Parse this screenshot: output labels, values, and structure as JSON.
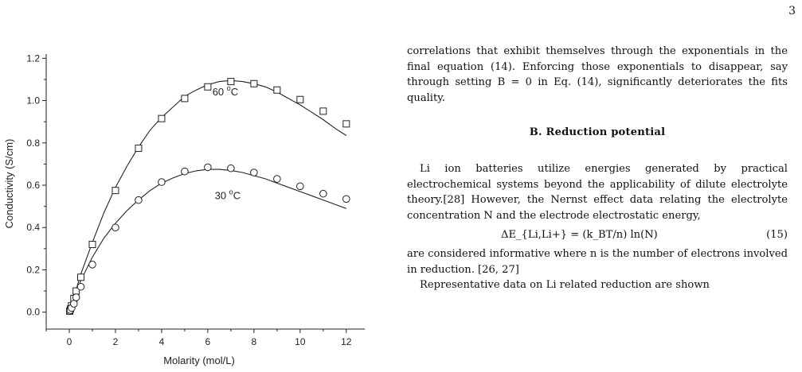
{
  "page": {
    "number": "3"
  },
  "figure": {
    "chart_data": {
      "type": "scatter",
      "xlabel": "Molarity (mol/L)",
      "ylabel": "Conductivity (S/cm)",
      "xlim": [
        -1,
        12.8
      ],
      "ylim": [
        -0.08,
        1.22
      ],
      "xticks": [
        0,
        2,
        4,
        6,
        8,
        10,
        12
      ],
      "yticks": [
        0.0,
        0.2,
        0.4,
        0.6,
        0.8,
        1.0,
        1.2
      ],
      "x_tick_labels": [
        "0",
        "2",
        "4",
        "6",
        "8",
        "10",
        "12"
      ],
      "y_tick_labels": [
        "0.0",
        "0.2",
        "0.4",
        "0.6",
        "0.8",
        "1.0",
        "1.2"
      ],
      "series": [
        {
          "name": "60 °C",
          "label_main": "60 ",
          "label_sup": "o",
          "label_unit": "C",
          "label_at": [
            6.2,
            1.025
          ],
          "marker": "square",
          "x": [
            0.02,
            0.05,
            0.1,
            0.2,
            0.3,
            0.5,
            1,
            2,
            3,
            4,
            5,
            6,
            7,
            8,
            9,
            10,
            11,
            12
          ],
          "y": [
            0.005,
            0.015,
            0.03,
            0.065,
            0.1,
            0.165,
            0.32,
            0.575,
            0.775,
            0.915,
            1.01,
            1.065,
            1.09,
            1.08,
            1.05,
            1.005,
            0.95,
            0.89
          ],
          "fit_x": [
            0,
            0.5,
            1,
            1.5,
            2,
            2.5,
            3,
            3.5,
            4,
            4.5,
            5,
            5.5,
            6,
            6.5,
            7,
            7.5,
            8,
            8.5,
            9,
            9.5,
            10,
            10.5,
            11,
            11.5,
            12
          ],
          "fit_y": [
            0.0,
            0.18,
            0.33,
            0.47,
            0.59,
            0.69,
            0.78,
            0.86,
            0.92,
            0.97,
            1.02,
            1.05,
            1.075,
            1.09,
            1.095,
            1.09,
            1.08,
            1.065,
            1.04,
            1.01,
            0.98,
            0.945,
            0.91,
            0.87,
            0.835
          ]
        },
        {
          "name": "30 °C",
          "label_main": "30 ",
          "label_sup": "o",
          "label_unit": "C",
          "label_at": [
            6.3,
            0.535
          ],
          "marker": "circle",
          "x": [
            0.02,
            0.05,
            0.1,
            0.2,
            0.3,
            0.5,
            1,
            2,
            3,
            4,
            5,
            6,
            7,
            8,
            9,
            10,
            11,
            12
          ],
          "y": [
            0.005,
            0.01,
            0.02,
            0.04,
            0.07,
            0.12,
            0.225,
            0.4,
            0.53,
            0.615,
            0.665,
            0.685,
            0.68,
            0.66,
            0.63,
            0.595,
            0.56,
            0.535
          ],
          "fit_x": [
            0,
            0.5,
            1,
            1.5,
            2,
            2.5,
            3,
            3.5,
            4,
            4.5,
            5,
            5.5,
            6,
            6.5,
            7,
            7.5,
            8,
            8.5,
            9,
            9.5,
            10,
            10.5,
            11,
            11.5,
            12
          ],
          "fit_y": [
            0.0,
            0.15,
            0.26,
            0.35,
            0.42,
            0.48,
            0.53,
            0.575,
            0.61,
            0.635,
            0.655,
            0.668,
            0.675,
            0.675,
            0.67,
            0.66,
            0.645,
            0.63,
            0.61,
            0.59,
            0.57,
            0.55,
            0.53,
            0.51,
            0.49
          ]
        }
      ]
    }
  },
  "text": {
    "para1": "correlations that exhibit themselves through the exponentials in the final equation (14). Enforcing those exponentials to disappear, say through setting B = 0 in Eq. (14), significantly deteriorates the fits quality.",
    "heading": "B.   Reduction potential",
    "para2": "Li ion batteries utilize energies generated by practical electrochemical systems beyond the applicability of dilute electrolyte theory.[28] However, the Nernst effect data relating the electrolyte concentration N and the electrode electrostatic energy,",
    "equation": "ΔE_{Li,Li+} = (k_BT/n) ln(N)",
    "equation_number": "(15)",
    "para3": "are considered informative where n is the number of electrons involved in reduction. [26, 27]",
    "para4": "Representative data on Li related reduction are shown"
  }
}
